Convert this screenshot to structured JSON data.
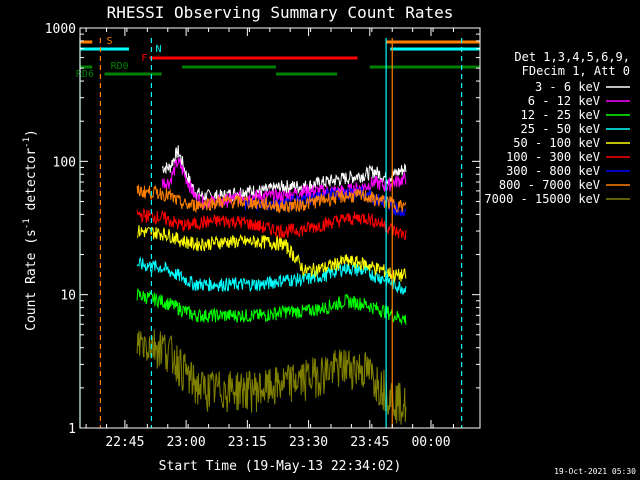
{
  "chart_data": {
    "type": "line",
    "title": "RHESSI Observing Summary Count Rates",
    "xlabel": "Start Time (19-May-13 22:34:02)",
    "ylabel_main": "Count Rate (s",
    "ylabel_sup1": "-1",
    "ylabel_mid": " detector",
    "ylabel_sup2": "-1",
    "ylabel_end": ")",
    "yscale": "log",
    "ylim": [
      1,
      1000
    ],
    "xlim_minutes": [
      0,
      98
    ],
    "x_tick_labels": [
      "22:45",
      "23:00",
      "23:15",
      "23:30",
      "23:45",
      "00:00"
    ],
    "y_tick_labels": [
      "1",
      "10",
      "100",
      "1000"
    ],
    "legend_header": [
      "Det 1,3,4,5,6,9,",
      "FDecim 1, Att 0"
    ],
    "footer_date": "19-Oct-2021 05:30",
    "flags": {
      "S": {
        "label": "S",
        "color": "#ff8000"
      },
      "N": {
        "label": "N",
        "color": "#00ffff"
      },
      "F": {
        "label": "F",
        "color": "#ff0000"
      },
      "RD0": {
        "label": "RD0",
        "color": "#008000"
      },
      "RD6": {
        "label": "RD6",
        "color": "#008000"
      }
    },
    "series": [
      {
        "name": "3 - 6 keV",
        "color": "#ffffff",
        "values": [
          [
            14,
            null
          ],
          [
            20,
            null
          ]
        ]
      },
      {
        "name": "6 - 12 keV",
        "color": "#ff00ff"
      },
      {
        "name": "12 - 25 keV",
        "color": "#00ff00"
      },
      {
        "name": "25 - 50 keV",
        "color": "#00ffff"
      },
      {
        "name": "50 - 100 keV",
        "color": "#ffff00"
      },
      {
        "name": "100 - 300 keV",
        "color": "#ff0000"
      },
      {
        "name": "300 - 800 keV",
        "color": "#0000ff"
      },
      {
        "name": "800 - 7000 keV",
        "color": "#ff8000"
      },
      {
        "name": "7000 - 15000 keV",
        "color": "#808000"
      }
    ],
    "profiles": {
      "x": [
        14,
        20,
        22,
        24,
        26,
        28,
        30,
        35,
        40,
        45,
        50,
        55,
        60,
        65,
        70,
        72,
        75,
        77,
        80
      ],
      "3 - 6 keV": [
        null,
        null,
        90,
        120,
        80,
        60,
        55,
        55,
        60,
        60,
        65,
        65,
        70,
        75,
        80,
        85,
        75,
        80,
        90
      ],
      "6 - 12 keV": [
        null,
        null,
        70,
        100,
        75,
        55,
        50,
        50,
        55,
        55,
        55,
        60,
        60,
        60,
        65,
        70,
        65,
        70,
        75
      ],
      "100 - 300 keV": [
        40,
        38,
        36,
        34,
        33,
        34,
        35,
        36,
        35,
        32,
        30,
        31,
        34,
        37,
        38,
        36,
        33,
        30,
        28
      ],
      "800 - 7000 keV": [
        60,
        58,
        55,
        50,
        47,
        47,
        48,
        50,
        50,
        48,
        46,
        48,
        52,
        55,
        55,
        52,
        50,
        48,
        45
      ],
      "300 - 800 keV": [
        null,
        null,
        null,
        null,
        null,
        null,
        null,
        null,
        null,
        48,
        47,
        52,
        56,
        58,
        58,
        54,
        50,
        45,
        40
      ],
      "50 - 100 keV": [
        30,
        29,
        28,
        26,
        25,
        24,
        24,
        25,
        25,
        25,
        24,
        15,
        16,
        18,
        17,
        16,
        15,
        14,
        14
      ],
      "25 - 50 keV": [
        17,
        16,
        15,
        14,
        13,
        12,
        12,
        12,
        12,
        12,
        13,
        13,
        14,
        16,
        15,
        14,
        13,
        12,
        11
      ],
      "12 - 25 keV": [
        10,
        9,
        8.5,
        8,
        7.5,
        7,
        7,
        7,
        7,
        7,
        7.5,
        7.5,
        8,
        9,
        8.5,
        8,
        7.5,
        7,
        6.5
      ],
      "7000 - 15000 keV": [
        4.5,
        4.2,
        3.8,
        3.2,
        2.6,
        2.2,
        2,
        2,
        2,
        2,
        2.2,
        2.4,
        2.7,
        3,
        2.8,
        2.4,
        2,
        1.7,
        1.5
      ]
    }
  }
}
